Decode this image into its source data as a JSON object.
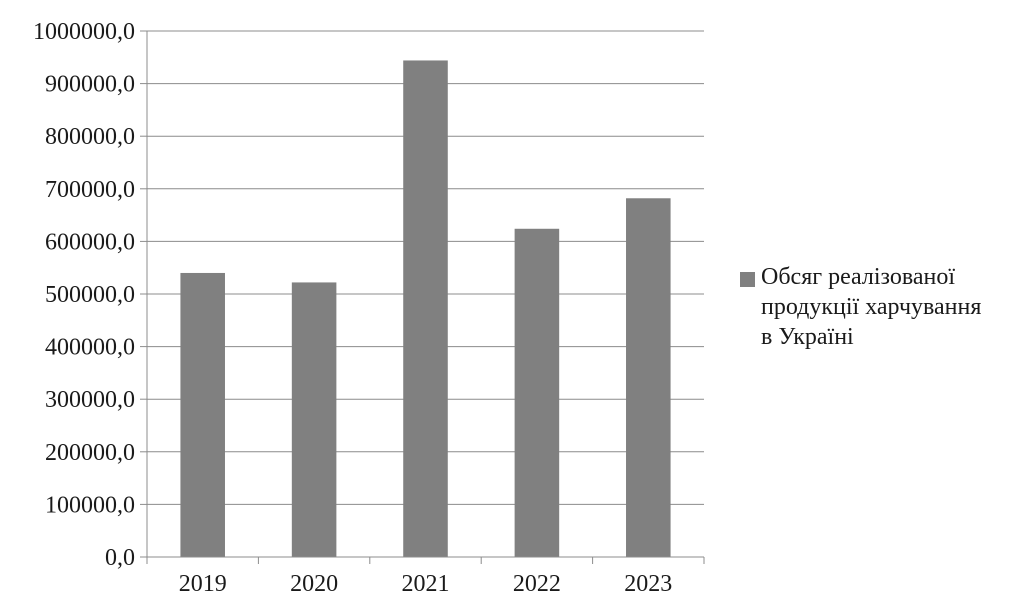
{
  "chart_data": {
    "type": "bar",
    "title": "",
    "xlabel": "",
    "ylabel": "",
    "categories": [
      "2019",
      "2020",
      "2021",
      "2022",
      "2023"
    ],
    "series": [
      {
        "name": "Обсяг реалізованої\nпродукції харчування\nв Україні",
        "values": [
          540000,
          522000,
          944000,
          624000,
          682000
        ],
        "color": "#808080"
      }
    ],
    "ylim": [
      0,
      1000000
    ],
    "y_ticks": [
      "0,0",
      "100000,0",
      "200000,0",
      "300000,0",
      "400000,0",
      "500000,0",
      "600000,0",
      "700000,0",
      "800000,0",
      "900000,0",
      "1000000,0"
    ],
    "grid": true,
    "legend_position": "right",
    "colors": {
      "bar": "#808080",
      "grid": "#8c8c8c",
      "axis": "#8c8c8c"
    }
  }
}
